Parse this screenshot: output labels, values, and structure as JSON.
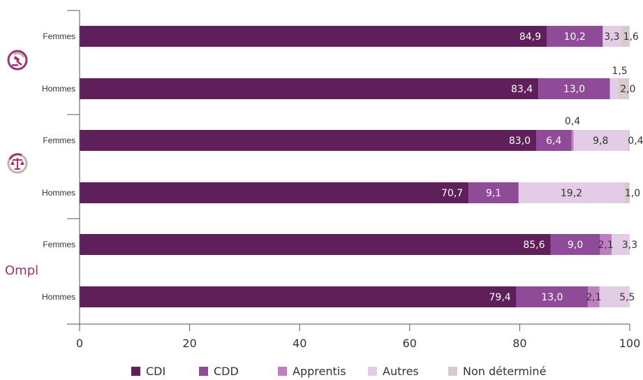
{
  "chart_data": {
    "type": "bar",
    "orientation": "horizontal",
    "stacked": true,
    "xlim": [
      0,
      100
    ],
    "xticks": [
      0,
      20,
      40,
      60,
      80,
      100
    ],
    "categories": [
      {
        "label": "Femmes",
        "group": "group-1"
      },
      {
        "label": "Hommes",
        "group": "group-1"
      },
      {
        "label": "Femmes",
        "group": "group-2"
      },
      {
        "label": "Hommes",
        "group": "group-2"
      },
      {
        "label": "Femmes",
        "group": "Ompl"
      },
      {
        "label": "Hommes",
        "group": "Ompl"
      }
    ],
    "series": [
      {
        "name": "CDI",
        "color": "#5e1f5b",
        "values": [
          84.9,
          83.4,
          83.0,
          70.7,
          85.6,
          79.4
        ],
        "labels": [
          "84,9",
          "83,4",
          "83,0",
          "70,7",
          "85,6",
          "79,4"
        ]
      },
      {
        "name": "CDD",
        "color": "#8f4a98",
        "values": [
          10.2,
          13.0,
          6.4,
          9.1,
          9.0,
          13.0
        ],
        "labels": [
          "10,2",
          "13,0",
          "6,4",
          "9,1",
          "9,0",
          "13,0"
        ]
      },
      {
        "name": "Apprentis",
        "color": "#bd7fbf",
        "values": [
          0,
          0,
          0.4,
          0,
          2.1,
          2.1
        ],
        "labels": [
          "",
          "",
          "0,4",
          "",
          "2,1",
          "2,1"
        ]
      },
      {
        "name": "Autres",
        "color": "#e3cce6",
        "values": [
          3.3,
          1.5,
          9.8,
          19.2,
          3.3,
          5.5
        ],
        "labels": [
          "3,3",
          "1,5",
          "9,8",
          "19,2",
          "3,3",
          "5,5"
        ]
      },
      {
        "name": "Non déterminé",
        "color": "#d6cdcb",
        "values": [
          1.6,
          2.0,
          0.4,
          1.0,
          0,
          0
        ],
        "labels": [
          "1,6",
          "2,0",
          "0,4",
          "1,0",
          "",
          ""
        ]
      }
    ],
    "groups": [
      {
        "id": "group-1",
        "icon": "gavel-icon",
        "label": ""
      },
      {
        "id": "group-2",
        "icon": "scales-icon",
        "label": ""
      },
      {
        "id": "Ompl",
        "icon": "ompl-logo",
        "label": "Ompl"
      }
    ],
    "legend_position": "bottom",
    "grid": false
  }
}
